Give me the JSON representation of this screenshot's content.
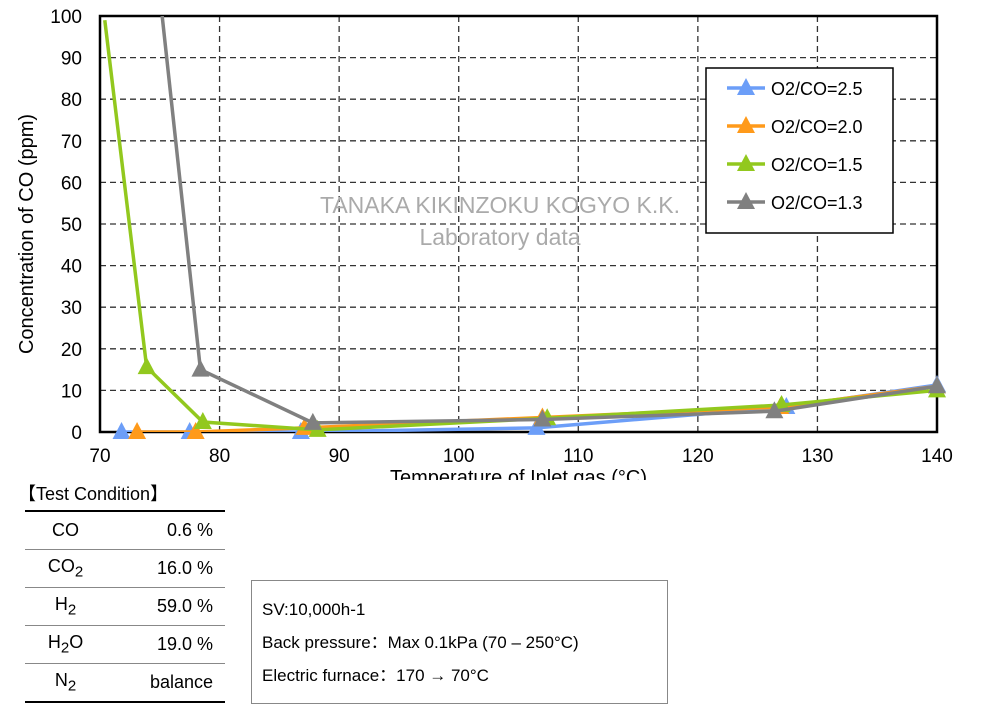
{
  "chart_data": {
    "type": "line",
    "xlabel": "Temperature of Inlet gas (°C)",
    "ylabel": "Concentration of CO (ppm)",
    "xlim": [
      70,
      140
    ],
    "ylim": [
      0,
      100
    ],
    "xticks": [
      70,
      80,
      90,
      100,
      110,
      120,
      130,
      140
    ],
    "yticks": [
      0,
      10,
      20,
      30,
      40,
      50,
      60,
      70,
      80,
      90,
      100
    ],
    "grid": true,
    "legend_placement": "top-right",
    "watermark": [
      "TANAKA KIKINZOKU KOGYO K.K.",
      "Laboratory data"
    ],
    "series": [
      {
        "name": "O2/CO=2.5",
        "color": "#6c9ef8",
        "points": [
          [
            71.8,
            0
          ],
          [
            77.5,
            0
          ],
          [
            86.8,
            0
          ],
          [
            106.5,
            1
          ],
          [
            127.4,
            6
          ],
          [
            140,
            11.3
          ]
        ]
      },
      {
        "name": "O2/CO=2.0",
        "color": "#ff9a1a",
        "points": [
          [
            73.1,
            0
          ],
          [
            78,
            0
          ],
          [
            87.1,
            1
          ],
          [
            107,
            3.5
          ],
          [
            126.9,
            6
          ],
          [
            140,
            11
          ]
        ]
      },
      {
        "name": "O2/CO=1.5",
        "color": "#92c81e",
        "points": [
          [
            70.4,
            99
          ],
          [
            73.9,
            15.6
          ],
          [
            78.6,
            2.4
          ],
          [
            88.2,
            0.5
          ],
          [
            107.4,
            3.3
          ],
          [
            127,
            6.5
          ],
          [
            140,
            10
          ]
        ]
      },
      {
        "name": "O2/CO=1.3",
        "color": "#808080",
        "points": [
          [
            75.2,
            100
          ],
          [
            78.4,
            15
          ],
          [
            87.8,
            2.2
          ],
          [
            107,
            3
          ],
          [
            126.4,
            5
          ],
          [
            140,
            11
          ]
        ]
      }
    ]
  },
  "test_condition": {
    "title": "【Test Condition】",
    "rows": [
      {
        "gas": "CO",
        "sub": "",
        "value": "0.6 %"
      },
      {
        "gas": "CO",
        "sub": "2",
        "value": "16.0 %"
      },
      {
        "gas": "H",
        "sub": "2",
        "value": "59.0 %"
      },
      {
        "gas": "H",
        "sub": "2",
        "gas2": "O",
        "value": "19.0 %"
      },
      {
        "gas": "N",
        "sub": "2",
        "value": "balance"
      }
    ]
  },
  "info": [
    "SV:10,000h-1",
    "Back pressure：Max 0.1kPa (70 – 250°C)",
    "Electric furnace：170 → 70°C"
  ]
}
